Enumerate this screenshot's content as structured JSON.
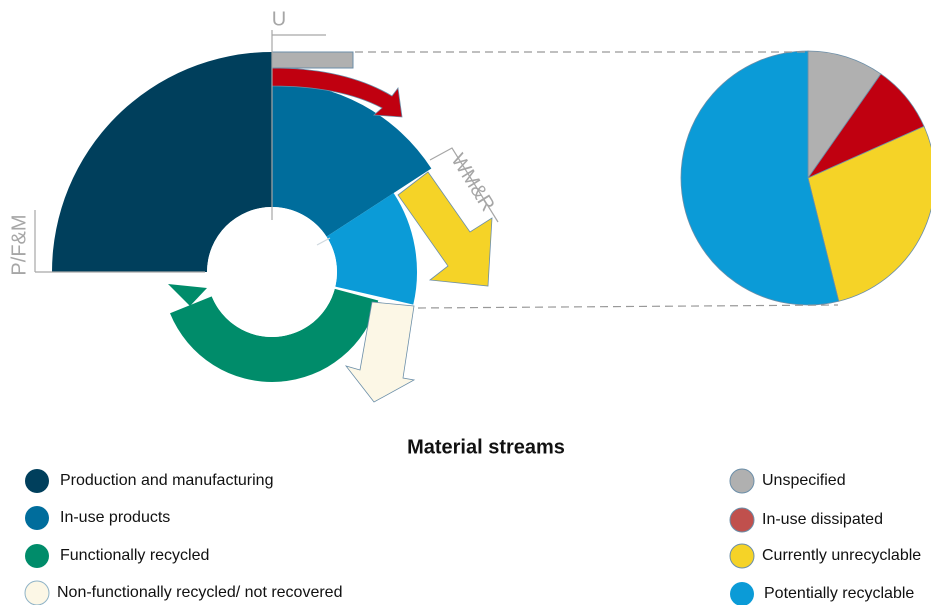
{
  "diagram": {
    "labels": {
      "u": "U",
      "wmr": "WM&R",
      "pfm": "P/F&M"
    },
    "legend": {
      "title": "Material streams",
      "left": [
        "Production and manufacturing",
        "In-use products",
        "Functionally recycled",
        "Non-functionally recycled/ not recovered"
      ],
      "right": [
        "Unspecified",
        "In-use dissipated",
        "Currently unrecyclable",
        "Potentially recyclable"
      ]
    }
  }
}
